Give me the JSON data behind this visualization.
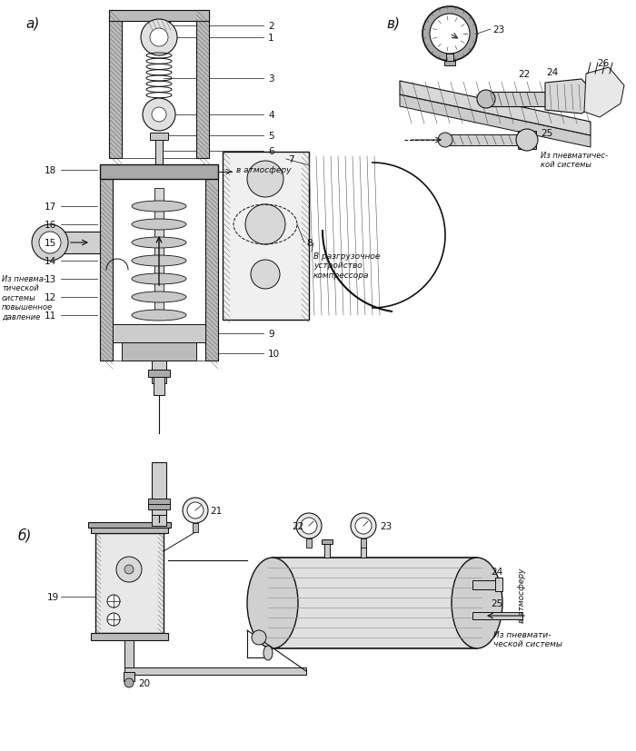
{
  "bg": "#ffffff",
  "lc": "#111111",
  "lc2": "#555555",
  "fig_w": 7.0,
  "fig_h": 8.28,
  "dpi": 100,
  "section_a_label": "а)",
  "section_b_label": "б)",
  "section_v_label": "в)",
  "label_v_atm_a": "в атмосферу",
  "label_from_pneu_a": "Из пневма-\nтической\nсистемы\nповышенное\nдавление",
  "label_v_razgr": "В разгрузочное\nустройство\nкомпрессора",
  "label_from_pneu_v": "Из пневматичес-\nкой системы",
  "label_v_atm_b": "в атмосферу",
  "label_from_pneu_b": "Из пневмати-\nческой системы",
  "nums_1_to_18": [
    1,
    2,
    3,
    4,
    5,
    6,
    7,
    8,
    9,
    10,
    11,
    12,
    13,
    14,
    15,
    16,
    17,
    18
  ],
  "nums_19_to_26": [
    19,
    20,
    21,
    22,
    23,
    24,
    25,
    26
  ]
}
